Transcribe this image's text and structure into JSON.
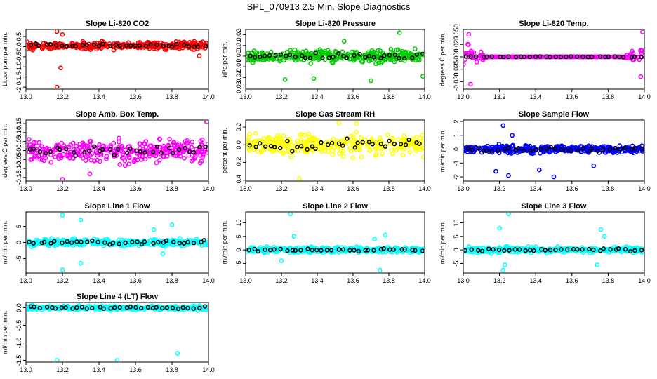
{
  "suptitle": "SPL_070913  2.5 Min. Slope Diagnostics",
  "colors": {
    "reference": "#000000"
  },
  "chart_data": [
    {
      "type": "scatter",
      "title": "Slope Li-820 CO2",
      "ylabel": "Li.cor ppm per min.",
      "color": "#ff0000",
      "xlim": [
        13.0,
        14.0
      ],
      "ylim": [
        -2.1,
        0.85
      ],
      "xticks": [
        13.0,
        13.2,
        13.4,
        13.6,
        13.8,
        14.0
      ],
      "xtick_labels": [
        "13.0",
        "13.2",
        "13.4",
        "13.6",
        "13.8",
        "14.0"
      ],
      "yticks": [
        -2.0,
        -1.5,
        -1.0,
        -0.5,
        0.0,
        0.5
      ],
      "ytick_labels": [
        "-2.0",
        "-1.5",
        "-1.0",
        "-0.5",
        "0.0",
        "0.5"
      ],
      "band": {
        "center": 0.05,
        "spread": 0.18
      },
      "outliers": [
        [
          13.17,
          -2.0
        ],
        [
          13.17,
          0.75
        ],
        [
          13.19,
          -1.05
        ],
        [
          13.2,
          0.6
        ],
        [
          13.95,
          -0.45
        ]
      ]
    },
    {
      "type": "scatter",
      "title": "Slope Li-820 Pressure",
      "ylabel": "kPa per min.",
      "color": "#00cc00",
      "xlim": [
        13.0,
        14.0
      ],
      "ylim": [
        -0.031,
        0.025
      ],
      "xticks": [
        13.0,
        13.2,
        13.4,
        13.6,
        13.8,
        14.0
      ],
      "xtick_labels": [
        "13.0",
        "13.2",
        "13.4",
        "13.6",
        "13.8",
        "14.0"
      ],
      "yticks": [
        -0.03,
        -0.02,
        -0.01,
        0.0,
        0.01,
        0.02
      ],
      "ytick_labels": [
        "-0.03",
        "-0.02",
        "-0.01",
        "0.00",
        "0.01",
        "0.02"
      ],
      "band": {
        "center": 0.0,
        "spread": 0.006
      },
      "outliers": [
        [
          13.86,
          0.022
        ],
        [
          13.22,
          -0.022
        ],
        [
          13.38,
          -0.021
        ],
        [
          13.7,
          -0.023
        ],
        [
          13.99,
          -0.019
        ],
        [
          13.55,
          0.014
        ]
      ]
    },
    {
      "type": "scatter",
      "title": "Slope Li-820 Temp.",
      "ylabel": "degrees C per min.",
      "color": "#ff00ff",
      "xlim": [
        13.0,
        14.0
      ],
      "ylim": [
        -0.065,
        0.055
      ],
      "xticks": [
        13.0,
        13.2,
        13.4,
        13.6,
        13.8,
        14.0
      ],
      "xtick_labels": [
        "13.0",
        "13.2",
        "13.4",
        "13.6",
        "13.8",
        "14.0"
      ],
      "yticks": [
        -0.05,
        -0.025,
        0.0,
        0.025,
        0.05
      ],
      "ytick_labels": [
        "-0.050",
        "-0.025",
        "0.000",
        "0.025",
        "0.050"
      ],
      "band": {
        "center": 0.0,
        "spread": 0.0
      },
      "edge_spread": 0.025,
      "outliers": [
        [
          13.04,
          -0.055
        ],
        [
          13.99,
          0.05
        ],
        [
          13.98,
          -0.04
        ],
        [
          13.03,
          0.045
        ]
      ]
    },
    {
      "type": "scatter",
      "title": "Slope Amb. Box Temp.",
      "ylabel": "degrees C per min.",
      "color": "#ff00ff",
      "xlim": [
        13.0,
        14.0
      ],
      "ylim": [
        -0.17,
        0.17
      ],
      "xticks": [
        13.0,
        13.2,
        13.4,
        13.6,
        13.8,
        14.0
      ],
      "xtick_labels": [
        "13.0",
        "13.2",
        "13.4",
        "13.6",
        "13.8",
        "14.0"
      ],
      "yticks": [
        -0.15,
        -0.1,
        -0.05,
        0.0,
        0.05,
        0.1,
        0.15
      ],
      "ytick_labels": [
        "-0.15",
        "-0.10",
        "-0.05",
        "0.00",
        "0.05",
        "0.10",
        "0.15"
      ],
      "band": {
        "center": 0.0,
        "spread": 0.07
      },
      "outliers": [
        [
          13.99,
          0.16
        ],
        [
          13.2,
          -0.16
        ],
        [
          13.35,
          -0.13
        ]
      ]
    },
    {
      "type": "scatter",
      "title": "Slope Gas Stream RH",
      "ylabel": "percent per min.",
      "color": "#ffff00",
      "xlim": [
        13.0,
        14.0
      ],
      "ylim": [
        -0.41,
        0.28
      ],
      "xticks": [
        13.0,
        13.2,
        13.4,
        13.6,
        13.8,
        14.0
      ],
      "xtick_labels": [
        "13.0",
        "13.2",
        "13.4",
        "13.6",
        "13.8",
        "14.0"
      ],
      "yticks": [
        -0.4,
        -0.2,
        0.0,
        0.2
      ],
      "ytick_labels": [
        "-0.4",
        "-0.2",
        "0.0",
        "0.2"
      ],
      "band": {
        "center": 0.0,
        "spread": 0.12
      },
      "outliers": [
        [
          13.3,
          -0.38
        ],
        [
          13.52,
          0.25
        ],
        [
          13.62,
          0.24
        ]
      ]
    },
    {
      "type": "scatter",
      "title": "Slope Sample Flow",
      "ylabel": "ml/min per min.",
      "color": "#0000ff",
      "xlim": [
        13.0,
        14.0
      ],
      "ylim": [
        -2.3,
        2.1
      ],
      "xticks": [
        13.0,
        13.2,
        13.4,
        13.6,
        13.8,
        14.0
      ],
      "xtick_labels": [
        "13.0",
        "13.2",
        "13.4",
        "13.6",
        "13.8",
        "14.0"
      ],
      "yticks": [
        -2,
        -1,
        0,
        1,
        2
      ],
      "ytick_labels": [
        "-2",
        "-1",
        "0",
        "1",
        "2"
      ],
      "band": {
        "center": 0.0,
        "spread": 0.3
      },
      "outliers": [
        [
          13.22,
          1.7
        ],
        [
          13.25,
          -1.9
        ],
        [
          13.18,
          -1.6
        ],
        [
          13.27,
          1.0
        ],
        [
          13.5,
          -2.0
        ],
        [
          13.42,
          -1.5
        ],
        [
          13.72,
          -1.2
        ]
      ]
    },
    {
      "type": "scatter",
      "title": "Slope Line 1 Flow",
      "ylabel": "ml/min per min.",
      "color": "#00ffff",
      "xlim": [
        13.0,
        14.0
      ],
      "ylim": [
        -9.5,
        9.5
      ],
      "xticks": [
        13.0,
        13.2,
        13.4,
        13.6,
        13.8,
        14.0
      ],
      "xtick_labels": [
        "13.0",
        "13.2",
        "13.4",
        "13.6",
        "13.8",
        "14.0"
      ],
      "yticks": [
        -5,
        0,
        5
      ],
      "ytick_labels": [
        "-5",
        "0",
        "5"
      ],
      "band": {
        "center": 0.0,
        "spread": 1.2
      },
      "outliers": [
        [
          13.2,
          8.5
        ],
        [
          13.2,
          -8.5
        ],
        [
          13.3,
          7.0
        ],
        [
          13.3,
          -6.5
        ],
        [
          13.8,
          5.5
        ],
        [
          13.75,
          -3.5
        ],
        [
          13.7,
          4.0
        ]
      ]
    },
    {
      "type": "scatter",
      "title": "Slope Line 2 Flow",
      "ylabel": "ml/min per min.",
      "color": "#00ffff",
      "xlim": [
        13.0,
        14.0
      ],
      "ylim": [
        -8.5,
        14.0
      ],
      "xticks": [
        13.0,
        13.2,
        13.4,
        13.6,
        13.8,
        14.0
      ],
      "xtick_labels": [
        "13.0",
        "13.2",
        "13.4",
        "13.6",
        "13.8",
        "14.0"
      ],
      "yticks": [
        -5,
        0,
        5,
        10
      ],
      "ytick_labels": [
        "-5",
        "0",
        "5",
        "10"
      ],
      "band": {
        "center": 0.0,
        "spread": 1.1
      },
      "outliers": [
        [
          13.25,
          13.3
        ],
        [
          13.75,
          -7.5
        ],
        [
          13.27,
          5.0
        ],
        [
          13.2,
          -4.0
        ],
        [
          13.72,
          4.0
        ],
        [
          13.78,
          5.5
        ]
      ]
    },
    {
      "type": "scatter",
      "title": "Slope Line 3 Flow",
      "ylabel": "ml/min per min.",
      "color": "#00ffff",
      "xlim": [
        13.0,
        14.0
      ],
      "ylim": [
        -8.5,
        14.0
      ],
      "xticks": [
        13.0,
        13.2,
        13.4,
        13.6,
        13.8,
        14.0
      ],
      "xtick_labels": [
        "13.0",
        "13.2",
        "13.4",
        "13.6",
        "13.8",
        "14.0"
      ],
      "yticks": [
        -5,
        0,
        5,
        10
      ],
      "ytick_labels": [
        "-5",
        "0",
        "5",
        "10"
      ],
      "band": {
        "center": 0.0,
        "spread": 1.1
      },
      "outliers": [
        [
          13.25,
          13.3
        ],
        [
          13.22,
          -7.5
        ],
        [
          13.2,
          8.0
        ],
        [
          13.23,
          -5.5
        ],
        [
          13.76,
          7.5
        ],
        [
          13.74,
          -5.5
        ],
        [
          13.78,
          5.0
        ]
      ]
    },
    {
      "type": "scatter",
      "title": "Slope Line 4 (LT) Flow",
      "ylabel": "ml/min per min.",
      "color": "#00ffff",
      "xlim": [
        13.0,
        14.0
      ],
      "ylim": [
        -1.55,
        0.15
      ],
      "xticks": [
        13.0,
        13.2,
        13.4,
        13.6,
        13.8,
        14.0
      ],
      "xtick_labels": [
        "13.0",
        "13.2",
        "13.4",
        "13.6",
        "13.8",
        "14.0"
      ],
      "yticks": [
        -1.5,
        -1.0,
        -0.5,
        0.0
      ],
      "ytick_labels": [
        "-1.5",
        "-1.0",
        "-0.5",
        "0.0"
      ],
      "band": {
        "center": 0.0,
        "spread": 0.06
      },
      "outliers": [
        [
          13.17,
          -1.5
        ],
        [
          13.5,
          -1.5
        ],
        [
          13.83,
          -1.3
        ]
      ]
    }
  ]
}
